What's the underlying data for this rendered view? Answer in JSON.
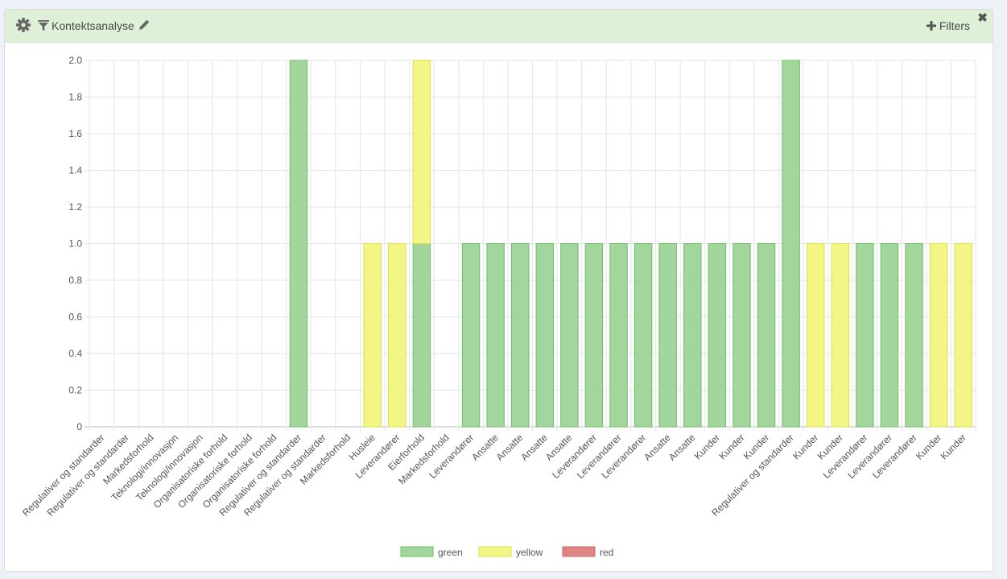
{
  "header": {
    "title": "Kontektsanalyse",
    "filters_label": "Filters",
    "close_glyph": "✖"
  },
  "icons": {
    "settings": "gear-icon",
    "filter": "funnel-icon",
    "edit": "pencil-icon",
    "add": "plus-icon",
    "close": "close-icon"
  },
  "colors": {
    "header_bg": "#dff0d8",
    "green_fill": "#a3d69c",
    "green_stroke": "#6cbf63",
    "yellow_fill": "#f3f585",
    "yellow_stroke": "#dcdf4a",
    "red_fill": "#e08484",
    "red_stroke": "#c96a6a"
  },
  "chart_data": {
    "type": "bar",
    "stacked": true,
    "ylim": [
      0,
      2.0
    ],
    "yticks": [
      "0",
      "0.2",
      "0.4",
      "0.6",
      "0.8",
      "1.0",
      "1.2",
      "1.4",
      "1.6",
      "1.8",
      "2.0"
    ],
    "grid": true,
    "legend_position": "bottom-center",
    "categories": [
      "Regulativer og standarder",
      "Regulativer og standarder",
      "Markedsforhold",
      "Teknologi/innovasjon",
      "Teknologi/innovasjon",
      "Organisatoriske forhold",
      "Organisatoriske forhold",
      "Organisatoriske forhold",
      "Regulativer og standarder",
      "Regulativer og standarder",
      "Markedsforhold",
      "Husleie",
      "Leverandører",
      "Eierforhold",
      "Markedsforhold",
      "Leverandører",
      "Ansatte",
      "Ansatte",
      "Ansatte",
      "Ansatte",
      "Leverandører",
      "Leverandører",
      "Leverandører",
      "Ansatte",
      "Ansatte",
      "Kunder",
      "Kunder",
      "Kunder",
      "Regulativer og standarder",
      "Kunder",
      "Kunder",
      "Leverandører",
      "Leverandører",
      "Leverandører",
      "Kunder",
      "Kunder"
    ],
    "series": [
      {
        "name": "green",
        "values": [
          0,
          0,
          0,
          0,
          0,
          0,
          0,
          0,
          2,
          0,
          0,
          0,
          0,
          1,
          0,
          1,
          1,
          1,
          1,
          1,
          1,
          1,
          1,
          1,
          1,
          1,
          1,
          1,
          2,
          0,
          0,
          1,
          1,
          1,
          0,
          0
        ]
      },
      {
        "name": "yellow",
        "values": [
          0,
          0,
          0,
          0,
          0,
          0,
          0,
          0,
          0,
          0,
          0,
          1,
          1,
          1,
          0,
          0,
          0,
          0,
          0,
          0,
          0,
          0,
          0,
          0,
          0,
          0,
          0,
          0,
          0,
          1,
          1,
          0,
          0,
          0,
          1,
          1
        ]
      },
      {
        "name": "red",
        "values": [
          0,
          0,
          0,
          0,
          0,
          0,
          0,
          0,
          0,
          0,
          0,
          0,
          0,
          0,
          0,
          0,
          0,
          0,
          0,
          0,
          0,
          0,
          0,
          0,
          0,
          0,
          0,
          0,
          0,
          0,
          0,
          0,
          0,
          0,
          0,
          0
        ]
      }
    ]
  }
}
